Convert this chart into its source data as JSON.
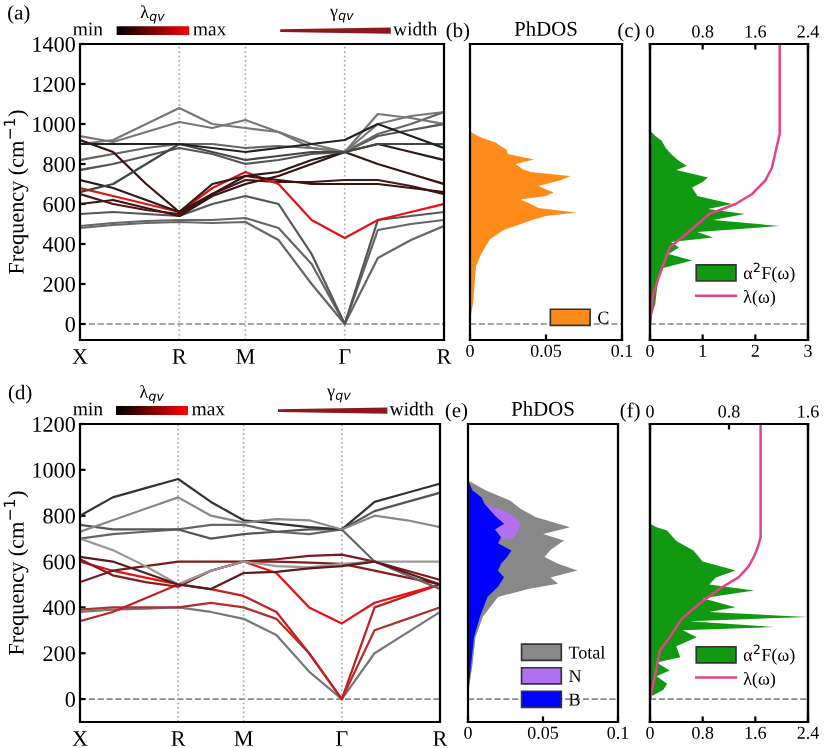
{
  "chart_data": [
    {
      "type": "line",
      "categories": [
        "X",
        null,
        null,
        "R",
        null,
        "M",
        null,
        null,
        "Γ",
        null,
        null,
        "R"
      ],
      "ylim": [
        -80,
        1400
      ],
      "yticks": [
        0,
        200,
        400,
        600,
        800,
        1000,
        1200,
        1400
      ],
      "ylabel": "Frequency (cm$^{−1}$)",
      "grid": "x",
      "line_style": "solid",
      "marker": "none",
      "ref_lines": [
        {
          "axis": "y",
          "value": 0,
          "line_style": "dashed",
          "color": "#888888"
        }
      ],
      "annotations": [
        "(a)",
        "min",
        "max",
        "λ$_{qv}$",
        "γ$_{qv}$",
        "width"
      ],
      "series": [
        {
          "color": "#666666",
          "values": [
            480,
            495,
            505,
            510,
            505,
            510,
            420,
            200,
            0,
            330,
            420,
            490
          ]
        },
        {
          "color": "#666666",
          "values": [
            490,
            505,
            515,
            520,
            520,
            530,
            480,
            300,
            0,
            470,
            500,
            520
          ]
        },
        {
          "color": "#555555",
          "values": [
            550,
            560,
            550,
            540,
            600,
            640,
            600,
            350,
            0,
            520,
            540,
            560
          ]
        },
        {
          "color": "#3a1010",
          "values": [
            600,
            620,
            580,
            540,
            640,
            700,
            740,
            800,
            860,
            800,
            750,
            700
          ]
        },
        {
          "color": "#4a1515",
          "values": [
            650,
            600,
            570,
            550,
            650,
            720,
            710,
            710,
            720,
            720,
            690,
            650
          ]
        },
        {
          "color": "#e81010",
          "values": [
            680,
            640,
            600,
            560,
            680,
            760,
            700,
            520,
            430,
            520,
            560,
            600
          ]
        },
        {
          "color": "#2a1a1a",
          "values": [
            720,
            680,
            620,
            560,
            700,
            740,
            760,
            820,
            860,
            900,
            860,
            820
          ]
        },
        {
          "color": "#555555",
          "values": [
            770,
            800,
            840,
            880,
            850,
            800,
            820,
            850,
            860,
            940,
            970,
            1000
          ]
        },
        {
          "color": "#666666",
          "values": [
            820,
            850,
            880,
            900,
            900,
            880,
            890,
            880,
            860,
            950,
            1000,
            1060
          ]
        },
        {
          "color": "#777777",
          "values": [
            900,
            920,
            1000,
            1080,
            1000,
            980,
            960,
            900,
            860,
            1000,
            1040,
            1060
          ]
        },
        {
          "color": "#777777",
          "values": [
            940,
            910,
            960,
            1010,
            980,
            1020,
            960,
            880,
            860,
            1050,
            1030,
            1000
          ]
        },
        {
          "color": "#3a1010",
          "values": [
            920,
            860,
            700,
            560,
            650,
            740,
            720,
            700,
            700,
            700,
            680,
            660
          ]
        },
        {
          "color": "#444444",
          "values": [
            660,
            700,
            800,
            900,
            860,
            820,
            840,
            860,
            860,
            900,
            900,
            900
          ]
        },
        {
          "color": "#222222",
          "values": [
            900,
            900,
            900,
            900,
            880,
            860,
            880,
            900,
            920,
            1000,
            940,
            880
          ]
        }
      ]
    },
    {
      "type": "area",
      "orientation": "horizontal",
      "title": "PhDOS",
      "xlim": [
        0,
        0.1
      ],
      "xticks": [
        0,
        0.05,
        0.1
      ],
      "ylim": [
        -80,
        1400
      ],
      "tick_labels": "x",
      "legend": "bottom right",
      "grid": false,
      "ref_lines": [
        {
          "axis": "y",
          "value": 0,
          "line_style": "dashed",
          "color": "#888888"
        }
      ],
      "annotations": [
        "(b)"
      ],
      "series": [
        {
          "name": "C",
          "color": "#ff8c1a",
          "x": [
            20,
            100,
            200,
            290,
            360,
            423,
            470,
            523,
            540,
            557,
            580,
            600,
            623,
            640,
            657,
            690,
            720,
            740,
            760,
            773,
            800,
            823,
            850,
            873,
            890,
            907,
            930,
            957,
            973
          ],
          "values": [
            0,
            0.002,
            0.003,
            0.004,
            0.008,
            0.013,
            0.022,
            0.042,
            0.05,
            0.07,
            0.045,
            0.04,
            0.033,
            0.05,
            0.055,
            0.045,
            0.06,
            0.066,
            0.04,
            0.035,
            0.03,
            0.042,
            0.025,
            0.024,
            0.02,
            0.017,
            0.008,
            0.001,
            0
          ]
        }
      ]
    },
    {
      "type": "area",
      "orientation": "horizontal",
      "xlim": [
        0,
        3
      ],
      "xticks": [
        0,
        1,
        2,
        3
      ],
      "x2lim": [
        0,
        2.4
      ],
      "x2ticks": [
        0,
        0.8,
        1.6,
        2.4
      ],
      "ylim": [
        -80,
        1400
      ],
      "tick_labels": "x",
      "legend": "bottom right",
      "grid": false,
      "ref_lines": [
        {
          "axis": "y",
          "value": 0,
          "line_style": "dashed",
          "color": "#888888"
        }
      ],
      "annotations": [
        "(c)"
      ],
      "series": [
        {
          "name": "α$^{2}$F(ω)",
          "color": "#119911",
          "x": [
            17,
            100,
            217,
            280,
            317,
            350,
            383,
            410,
            433,
            460,
            490,
            520,
            550,
            575,
            600,
            640,
            683,
            710,
            733,
            770,
            790,
            817,
            850,
            880,
            917,
            940,
            967
          ],
          "values": [
            0,
            0.1,
            0.15,
            0.25,
            0.8,
            0.35,
            0.55,
            0.4,
            1.2,
            0.9,
            2.46,
            1.2,
            1.8,
            1.1,
            1.56,
            0.9,
            0.8,
            1.0,
            1.1,
            0.5,
            0.7,
            0.54,
            0.4,
            0.3,
            0.22,
            0.1,
            0
          ]
        },
        {
          "type": "line",
          "axis": "x2",
          "name": "λ(ω)",
          "color": "#e8408a",
          "x": [
            0,
            150,
            250,
            383,
            450,
            550,
            600,
            650,
            717,
            780,
            850,
            950,
            1400
          ],
          "values": [
            0,
            0.05,
            0.15,
            0.3,
            0.55,
            0.9,
            1.3,
            1.55,
            1.75,
            1.85,
            1.9,
            1.97,
            1.97
          ]
        }
      ]
    },
    {
      "type": "line",
      "categories": [
        "X",
        null,
        null,
        "R",
        null,
        "M",
        null,
        null,
        "Γ",
        null,
        null,
        "R"
      ],
      "ylim": [
        -100,
        1200
      ],
      "yticks": [
        0,
        200,
        400,
        600,
        800,
        1000,
        1200
      ],
      "ylabel": "Frequency (cm$^{−1}$)",
      "grid": "x",
      "line_style": "solid",
      "marker": "none",
      "ref_lines": [
        {
          "axis": "y",
          "value": 0,
          "line_style": "dashed",
          "color": "#888888"
        }
      ],
      "annotations": [
        "(d)",
        "min",
        "max",
        "λ$_{qv}$",
        "γ$_{qv}$",
        "width"
      ],
      "series": [
        {
          "color": "#777777",
          "values": [
            380,
            390,
            395,
            400,
            380,
            350,
            280,
            120,
            0,
            200,
            290,
            380
          ]
        },
        {
          "color": "#b03030",
          "values": [
            390,
            400,
            400,
            400,
            420,
            400,
            350,
            200,
            0,
            300,
            350,
            400
          ]
        },
        {
          "color": "#c02020",
          "values": [
            340,
            380,
            440,
            500,
            480,
            450,
            380,
            200,
            0,
            400,
            450,
            500
          ]
        },
        {
          "color": "#e81010",
          "values": [
            600,
            560,
            530,
            500,
            560,
            600,
            550,
            400,
            330,
            420,
            460,
            500
          ]
        },
        {
          "color": "#8b1a1a",
          "values": [
            610,
            540,
            510,
            490,
            560,
            600,
            600,
            595,
            590,
            560,
            530,
            500
          ]
        },
        {
          "color": "#666666",
          "values": [
            700,
            720,
            730,
            740,
            760,
            760,
            730,
            720,
            740,
            600,
            540,
            480
          ]
        },
        {
          "color": "#555555",
          "values": [
            760,
            740,
            740,
            740,
            700,
            720,
            730,
            740,
            740,
            820,
            860,
            900
          ]
        },
        {
          "color": "#333333",
          "values": [
            800,
            880,
            920,
            960,
            860,
            780,
            765,
            750,
            740,
            860,
            900,
            940
          ]
        },
        {
          "color": "#888888",
          "values": [
            730,
            780,
            830,
            880,
            800,
            770,
            785,
            780,
            740,
            800,
            780,
            750
          ]
        },
        {
          "color": "#7a1a1a",
          "values": [
            510,
            560,
            580,
            600,
            600,
            600,
            610,
            625,
            630,
            600,
            560,
            520
          ]
        },
        {
          "color": "#999999",
          "values": [
            700,
            650,
            580,
            500,
            560,
            600,
            580,
            575,
            590,
            600,
            600,
            600
          ]
        },
        {
          "color": "#5a1a1a",
          "values": [
            620,
            600,
            550,
            500,
            480,
            550,
            555,
            570,
            580,
            600,
            550,
            500
          ]
        }
      ]
    },
    {
      "type": "area",
      "orientation": "horizontal",
      "title": "PhDOS",
      "xlim": [
        0,
        0.1
      ],
      "xticks": [
        0,
        0.05,
        0.1
      ],
      "ylim": [
        -100,
        1200
      ],
      "tick_labels": "x",
      "legend": "bottom right",
      "grid": false,
      "ref_lines": [
        {
          "axis": "y",
          "value": 0,
          "line_style": "dashed",
          "color": "#888888"
        }
      ],
      "annotations": [
        "(e)"
      ],
      "series": [
        {
          "name": "Total",
          "color": "#888888",
          "x": [
            23,
            150,
            270,
            360,
            445,
            480,
            503,
            530,
            561,
            590,
            620,
            650,
            692,
            720,
            750,
            794,
            830,
            866,
            910,
            953
          ],
          "values": [
            0,
            0.003,
            0.005,
            0.01,
            0.02,
            0.04,
            0.06,
            0.055,
            0.073,
            0.06,
            0.051,
            0.055,
            0.064,
            0.05,
            0.068,
            0.045,
            0.035,
            0.028,
            0.012,
            0
          ]
        },
        {
          "name": "N",
          "color": "#b070f0",
          "x": [
            700,
            740,
            770,
            810,
            850
          ],
          "values": [
            0.03,
            0.034,
            0.035,
            0.028,
            0.012
          ]
        },
        {
          "name": "B",
          "color": "#0000ff",
          "x": [
            23,
            150,
            270,
            360,
            445,
            490,
            532,
            560,
            590,
            620,
            648,
            680,
            706,
            740,
            765,
            800,
            852,
            880,
            910,
            953
          ],
          "values": [
            0,
            0.002,
            0.004,
            0.008,
            0.013,
            0.02,
            0.024,
            0.02,
            0.022,
            0.026,
            0.029,
            0.02,
            0.022,
            0.018,
            0.024,
            0.018,
            0.011,
            0.009,
            0.003,
            0
          ]
        }
      ]
    },
    {
      "type": "area",
      "orientation": "horizontal",
      "xlim": [
        0,
        2.4
      ],
      "xticks": [
        0,
        0.8,
        1.6,
        2.4
      ],
      "x2lim": [
        0,
        1.6
      ],
      "x2ticks": [
        0,
        0.8,
        1.6
      ],
      "ylim": [
        -100,
        1200
      ],
      "tick_labels": "x",
      "legend": "bottom right",
      "grid": false,
      "ref_lines": [
        {
          "axis": "y",
          "value": 0,
          "line_style": "dashed",
          "color": "#888888"
        }
      ],
      "annotations": [
        "(f)"
      ],
      "series": [
        {
          "name": "α$^{2}$F(ω)",
          "color": "#119911",
          "x": [
            9,
            40,
            67,
            100,
            125,
            160,
            183,
            230,
            270,
            300,
            314,
            340,
            358,
            380,
            401,
            440,
            474,
            500,
            530,
            561,
            600,
            648,
            690,
            735,
            750,
            765
          ],
          "values": [
            0,
            0.2,
            0.26,
            0.1,
            0.3,
            0.1,
            0.46,
            0.4,
            0.71,
            0.5,
            1.89,
            0.6,
            2.4,
            0.9,
            1.3,
            0.8,
            1.58,
            0.9,
            1.0,
            1.3,
            0.8,
            0.66,
            0.4,
            0.26,
            0.1,
            0
          ]
        },
        {
          "type": "line",
          "axis": "x2",
          "name": "λ(ω)",
          "color": "#e8408a",
          "x": [
            0,
            100,
            212,
            270,
            350,
            416,
            480,
            532,
            580,
            619,
            660,
            706,
            760,
            1200
          ],
          "values": [
            0,
            0.05,
            0.1,
            0.2,
            0.32,
            0.5,
            0.7,
            0.9,
            1.0,
            1.05,
            1.09,
            1.12,
            1.12,
            1.12
          ]
        }
      ]
    }
  ]
}
